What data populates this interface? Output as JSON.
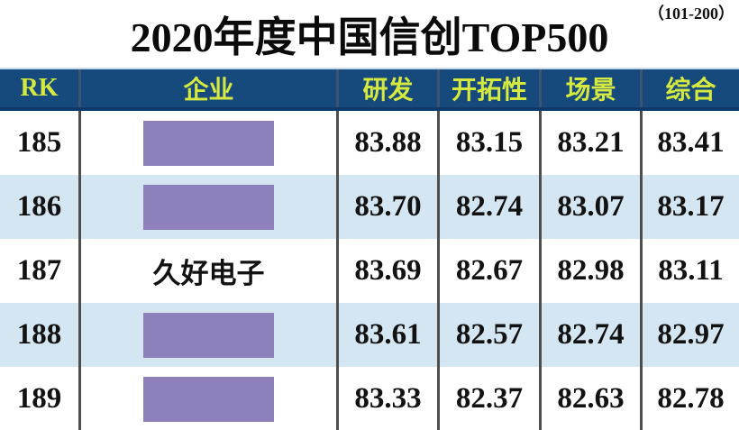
{
  "chart_data": {
    "type": "table",
    "title": "2020年度中国信创TOP500",
    "range_label": "（101-200）",
    "columns": [
      "RK",
      "企业",
      "研发",
      "开拓性",
      "场景",
      "综合"
    ],
    "rows": [
      {
        "rk": "185",
        "company": "",
        "redacted": true,
        "scores": [
          "83.88",
          "83.15",
          "83.21",
          "83.41"
        ]
      },
      {
        "rk": "186",
        "company": "",
        "redacted": true,
        "scores": [
          "83.70",
          "82.74",
          "83.07",
          "83.17"
        ]
      },
      {
        "rk": "187",
        "company": "久好电子",
        "redacted": false,
        "scores": [
          "83.69",
          "82.67",
          "82.98",
          "83.11"
        ]
      },
      {
        "rk": "188",
        "company": "",
        "redacted": true,
        "scores": [
          "83.61",
          "82.57",
          "82.74",
          "82.97"
        ]
      },
      {
        "rk": "189",
        "company": "",
        "redacted": true,
        "scores": [
          "83.33",
          "82.37",
          "82.63",
          "82.78"
        ]
      }
    ]
  },
  "colors": {
    "header_bg": "#164a7c",
    "header_text": "#d6e93e",
    "header_border": "#0d3a68",
    "row_alt": "#d5e6f3",
    "redaction": "#8e80ba",
    "divider": "#4e4e4e"
  }
}
